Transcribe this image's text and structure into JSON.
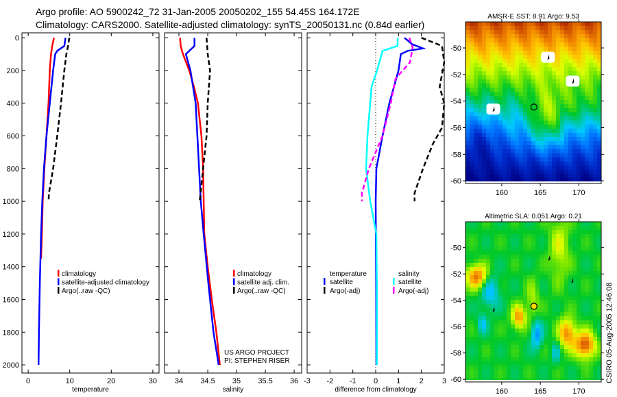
{
  "header": {
    "line1": "Argo profile: AO 5900242_72 31-Jan-2005 20050202_155 54.45S 164.172E",
    "line2": "Climatology: CARS2000. Satellite-adjusted climatology: synTS_20050131.nc (0.84d earlier)"
  },
  "footer_stamp": "CSIRO 05-Aug-2005 12:46:08",
  "colors": {
    "climatology": "#ff0000",
    "satellite": "#0000ff",
    "argo": "#000000",
    "sal_satellite": "#00ffff",
    "sal_argo": "#ff00ff"
  },
  "chart_data": [
    {
      "type": "line",
      "id": "temperature",
      "xlabel": "temperature",
      "ylabel": "",
      "xlim": [
        -1.5,
        31.5
      ],
      "ylim": [
        2050,
        -30
      ],
      "xticks": [
        "0",
        "10",
        "20",
        "30"
      ],
      "xtick_values": [
        0,
        10,
        20,
        30
      ],
      "yticks": [
        "0",
        "200",
        "400",
        "600",
        "800",
        "1000",
        "1200",
        "1400",
        "1600",
        "1800",
        "2000"
      ],
      "ytick_values": [
        0,
        200,
        400,
        600,
        800,
        1000,
        1200,
        1400,
        1600,
        1800,
        2000
      ],
      "legend": [
        "climatology",
        "satellite-adjusted climatology",
        "Argo(..raw -QC)"
      ],
      "series": [
        {
          "name": "climatology",
          "color": "#ff0000",
          "dashed": false,
          "depth": [
            0,
            50,
            100,
            200,
            400,
            600,
            800,
            1000,
            1200,
            1350
          ],
          "values": [
            6.2,
            5.8,
            5.5,
            5.2,
            4.9,
            4.4,
            3.9,
            3.5,
            3.3,
            3.1
          ]
        },
        {
          "name": "satellite-adjusted climatology",
          "color": "#0000ff",
          "dashed": false,
          "depth": [
            0,
            50,
            80,
            100,
            200,
            400,
            600,
            800,
            1000,
            1200,
            1500,
            1800,
            2000
          ],
          "values": [
            9.0,
            8.7,
            7.0,
            6.5,
            6.0,
            5.2,
            4.4,
            3.8,
            3.4,
            3.1,
            2.8,
            2.6,
            2.5
          ]
        },
        {
          "name": "Argo(..raw -QC)",
          "color": "#000000",
          "dashed": true,
          "depth": [
            0,
            50,
            100,
            200,
            400,
            600,
            800,
            950,
            1000
          ],
          "values": [
            9.9,
            9.6,
            9.2,
            8.7,
            7.9,
            7.0,
            6.0,
            5.0,
            4.9
          ]
        }
      ]
    },
    {
      "type": "line",
      "id": "salinity",
      "xlabel": "salinity",
      "xlim": [
        33.75,
        36.13
      ],
      "ylim": [
        2050,
        -30
      ],
      "xticks": [
        "34",
        "34.5",
        "35",
        "35.5",
        "36"
      ],
      "xtick_values": [
        34,
        34.5,
        35,
        35.5,
        36
      ],
      "legend": [
        "climatology",
        "satellite adj. clim.",
        "Argo(..raw -QC)"
      ],
      "annotation": [
        "US ARGO PROJECT",
        "PI: STEPHEN RISER"
      ],
      "series": [
        {
          "name": "climatology",
          "color": "#ff0000",
          "dashed": false,
          "depth": [
            0,
            50,
            100,
            200,
            300,
            400,
            600,
            800,
            1000,
            1200,
            1400,
            1600,
            1800,
            2000
          ],
          "values": [
            34.02,
            34.03,
            34.07,
            34.18,
            34.26,
            34.33,
            34.39,
            34.42,
            34.43,
            34.44,
            34.5,
            34.57,
            34.65,
            34.71
          ]
        },
        {
          "name": "satellite adj. clim.",
          "color": "#0000ff",
          "dashed": false,
          "depth": [
            0,
            50,
            60,
            100,
            200,
            400,
            600,
            800,
            1000,
            1200,
            1500,
            1800,
            2000
          ],
          "values": [
            34.27,
            34.27,
            34.24,
            34.12,
            34.2,
            34.29,
            34.32,
            34.35,
            34.38,
            34.43,
            34.51,
            34.6,
            34.69
          ]
        },
        {
          "name": "Argo(..raw -QC)",
          "color": "#000000",
          "dashed": true,
          "depth": [
            0,
            100,
            200,
            400,
            600,
            800,
            1000
          ],
          "values": [
            34.48,
            34.5,
            34.54,
            34.5,
            34.48,
            34.42,
            34.36
          ]
        }
      ]
    },
    {
      "type": "line",
      "id": "difference",
      "xlabel": "difference from climatology",
      "xlim": [
        -3,
        3
      ],
      "ylim": [
        2050,
        -30
      ],
      "xticks": [
        "-3",
        "-2",
        "-1",
        "0",
        "1",
        "2",
        "3"
      ],
      "xtick_values": [
        -3,
        -2,
        -1,
        0,
        1,
        2,
        3
      ],
      "legend_temperature": {
        "heading": "temperature",
        "items": [
          "satellite",
          "Argo(-adj)"
        ]
      },
      "legend_salinity": {
        "heading": "salinity",
        "items": [
          "satellite",
          "Argo(-adj)"
        ]
      },
      "series": [
        {
          "name": "temperature satellite",
          "color": "#0000ff",
          "dashed": false,
          "depth": [
            0,
            40,
            65,
            80,
            100,
            200,
            400,
            600,
            800,
            1000,
            1500,
            2000
          ],
          "values": [
            1.26,
            1.6,
            2.07,
            1.4,
            1.1,
            1.0,
            0.6,
            0.3,
            0.03,
            0.0,
            0.02,
            0.03
          ]
        },
        {
          "name": "temperature Argo(-adj)",
          "color": "#000000",
          "dashed": true,
          "depth": [
            0,
            50,
            150,
            300,
            400,
            550,
            650,
            800,
            950,
            1000
          ],
          "values": [
            2.0,
            2.9,
            3.0,
            2.8,
            3.0,
            2.9,
            2.5,
            2.07,
            1.7,
            1.7
          ]
        },
        {
          "name": "salinity satellite",
          "color": "#00ffff",
          "dashed": false,
          "depth": [
            0,
            50,
            80,
            200,
            300,
            600,
            800,
            1000,
            1200,
            1500,
            2000
          ],
          "values": [
            0.96,
            0.96,
            0.3,
            0.06,
            -0.18,
            -0.36,
            -0.42,
            -0.24,
            0.03,
            0.05,
            0.05
          ]
        },
        {
          "name": "salinity Argo(-adj)",
          "color": "#ff00ff",
          "dashed": true,
          "depth": [
            0,
            60,
            150,
            250,
            400,
            600,
            800,
            950,
            1000
          ],
          "values": [
            1.47,
            1.62,
            1.5,
            0.87,
            0.66,
            0.3,
            -0.3,
            -0.6,
            -0.6
          ]
        }
      ]
    },
    {
      "type": "heatmap",
      "id": "sst_map",
      "title": "AMSR-E SST: 8.91 Argo: 9.53",
      "xlim": [
        155.3,
        172.9
      ],
      "ylim": [
        -60.2,
        -48.04
      ],
      "xticks": [
        "160",
        "165",
        "170"
      ],
      "xtick_values": [
        160,
        165,
        170
      ],
      "yticks": [
        "-50",
        "-52",
        "-54",
        "-56",
        "-58",
        "-60"
      ],
      "ytick_values": [
        -50,
        -52,
        -54,
        -56,
        -58,
        -60
      ],
      "profile_location": [
        164.172,
        -54.45
      ],
      "masked_points": [
        [
          166.0,
          -50.7
        ],
        [
          169.2,
          -52.5
        ],
        [
          158.9,
          -54.6
        ]
      ]
    },
    {
      "type": "heatmap",
      "id": "sla_map",
      "title": "Altimetric SLA: 0.051 Argo: 0.21",
      "xlim": [
        155.3,
        172.9
      ],
      "ylim": [
        -60.2,
        -48.04
      ],
      "xticks": [
        "160",
        "165",
        "170"
      ],
      "xtick_values": [
        160,
        165,
        170
      ],
      "yticks": [
        "-50",
        "-52",
        "-54",
        "-56",
        "-58",
        "-60"
      ],
      "ytick_values": [
        -50,
        -52,
        -54,
        -56,
        -58,
        -60
      ],
      "profile_location": [
        164.172,
        -54.45
      ],
      "masked_points": [
        [
          166.1,
          -50.8
        ],
        [
          169.1,
          -52.5
        ],
        [
          158.9,
          -54.7
        ]
      ]
    }
  ]
}
